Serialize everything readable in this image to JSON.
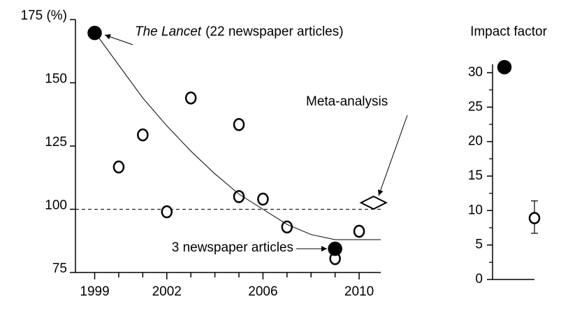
{
  "chart_data": [
    {
      "type": "scatter",
      "xlim": [
        1998.2,
        2010.9
      ],
      "ylim": [
        75,
        175
      ],
      "xticks": [
        1999,
        2002,
        2006,
        2010
      ],
      "xminor_ticks": [
        2000,
        2001,
        2003,
        2004,
        2005,
        2007,
        2008,
        2009
      ],
      "yticks": [
        75,
        100,
        125,
        150,
        {
          "value": 175,
          "label": "175 (%)"
        }
      ],
      "reference_line": 100,
      "series": [
        {
          "marker": "open",
          "color": "#000000",
          "x": [
            2000,
            2001,
            2002,
            2003,
            2005,
            2005,
            2006,
            2007,
            2009,
            2010
          ],
          "values": [
            116.7,
            129.4,
            99,
            144,
            133.5,
            105,
            104,
            93,
            80.5,
            91.3
          ]
        },
        {
          "marker": "filled",
          "color": "#000000",
          "x": [
            1999,
            2009
          ],
          "values": [
            169.7,
            84.4
          ]
        },
        {
          "marker": "diamond",
          "color": "#000000",
          "x": [
            2010.6
          ],
          "values": [
            102.6
          ]
        },
        {
          "marker": "line",
          "color": "#000000",
          "x": [
            1999,
            2000,
            2001,
            2002,
            2003,
            2004,
            2005,
            2006,
            2007,
            2008,
            2009,
            2010,
            2010.9
          ],
          "values": [
            170,
            157,
            144,
            133,
            123,
            114,
            106,
            100,
            94,
            90,
            88,
            88,
            88
          ]
        }
      ],
      "annotations": [
        {
          "italic": "The Lancet",
          "text": "(22 newspaper articles)"
        },
        {
          "text": "3 newspaper articles"
        },
        {
          "text": "Meta-analysis"
        }
      ]
    },
    {
      "type": "errorbar",
      "title": "Impact factor",
      "ylim": [
        0,
        31.2
      ],
      "yticks": [
        0,
        5,
        10,
        15,
        20,
        25,
        30
      ],
      "yminor_ticks": [
        2.5,
        7.5,
        12.5,
        17.5,
        22.5,
        27.5
      ],
      "categories": [
        null,
        null
      ],
      "markers": [
        "filled",
        "open"
      ],
      "color": "#000000",
      "values": [
        30.8,
        8.9
      ],
      "error_low": [
        0,
        2.2
      ],
      "error_high": [
        0,
        2.5
      ]
    }
  ]
}
